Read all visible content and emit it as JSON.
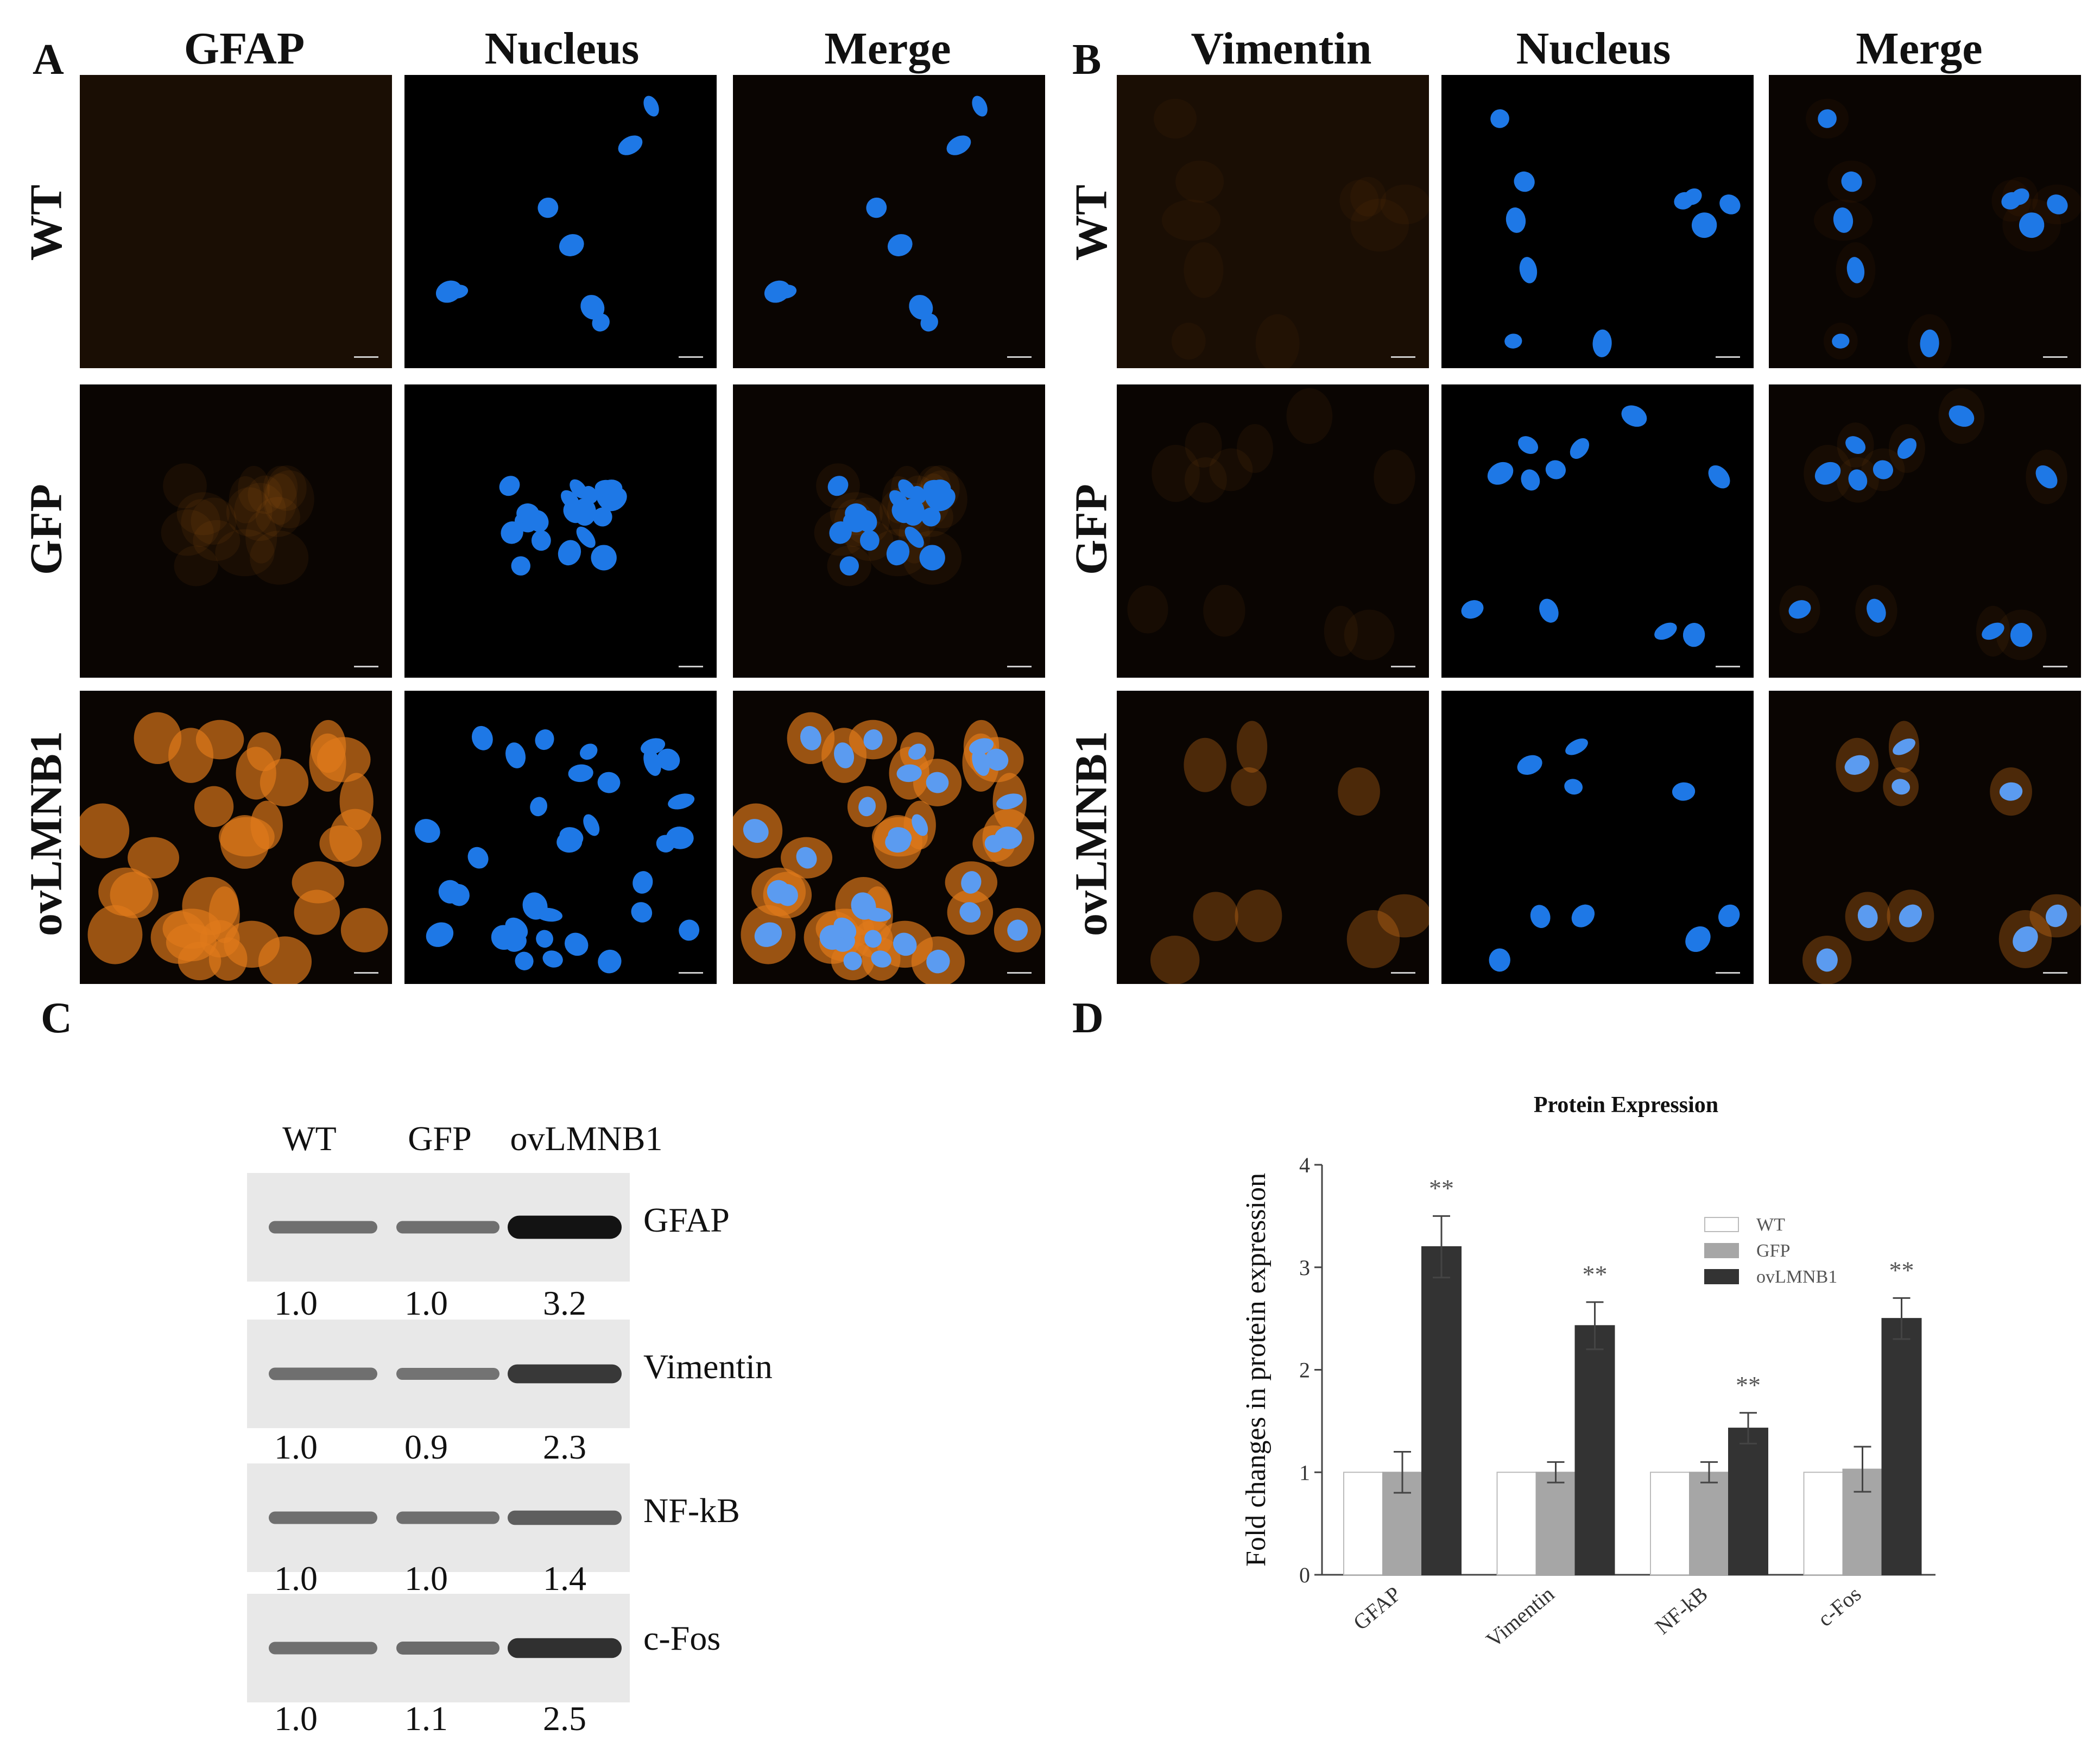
{
  "panels": {
    "A": {
      "label": "A",
      "columns": [
        "GFAP",
        "Nucleus",
        "Merge"
      ],
      "rows": [
        "WT",
        "GFP",
        "ovLMNB1"
      ]
    },
    "B": {
      "label": "B",
      "columns": [
        "Vimentin",
        "Nucleus",
        "Merge"
      ],
      "rows": [
        "WT",
        "GFP",
        "ovLMNB1"
      ]
    },
    "C": {
      "label": "C",
      "lanes": [
        "WT",
        "GFP",
        "ovLMNB1"
      ],
      "blots": [
        {
          "protein": "GFAP",
          "values": [
            "1.0",
            "1.0",
            "3.2"
          ]
        },
        {
          "protein": "Vimentin",
          "values": [
            "1.0",
            "0.9",
            "2.3"
          ]
        },
        {
          "protein": "NF-kB",
          "values": [
            "1.0",
            "1.0",
            "1.4"
          ]
        },
        {
          "protein": "c-Fos",
          "values": [
            "1.0",
            "1.1",
            "2.5"
          ]
        }
      ]
    },
    "D": {
      "label": "D"
    }
  },
  "colors": {
    "nucleus": "#1e78e6",
    "stain": "#e07a1a",
    "wt_bar": "#ffffff",
    "gfp_bar": "#a6a6a6",
    "ov_bar": "#333333"
  },
  "chart_data": {
    "type": "bar",
    "title": "Protein Expression",
    "ylabel": "Fold changes in protein expression",
    "xlabel": "",
    "categories": [
      "GFAP",
      "Vimentin",
      "NF-kB",
      "c-Fos"
    ],
    "ylim": [
      0,
      4
    ],
    "yticks": [
      "0",
      "1",
      "2",
      "3",
      "4"
    ],
    "series": [
      {
        "name": "WT",
        "values": [
          1.0,
          1.0,
          1.0,
          1.0
        ],
        "errors": [
          0,
          0,
          0,
          0
        ]
      },
      {
        "name": "GFP",
        "values": [
          1.0,
          1.0,
          1.0,
          1.03
        ],
        "errors": [
          0.2,
          0.1,
          0.1,
          0.22
        ]
      },
      {
        "name": "ovLMNB1",
        "values": [
          3.2,
          2.43,
          1.43,
          2.5
        ],
        "errors": [
          0.3,
          0.23,
          0.15,
          0.2
        ]
      }
    ],
    "significance": [
      "**",
      "**",
      "**",
      "**"
    ],
    "legend_position": "top-right"
  }
}
